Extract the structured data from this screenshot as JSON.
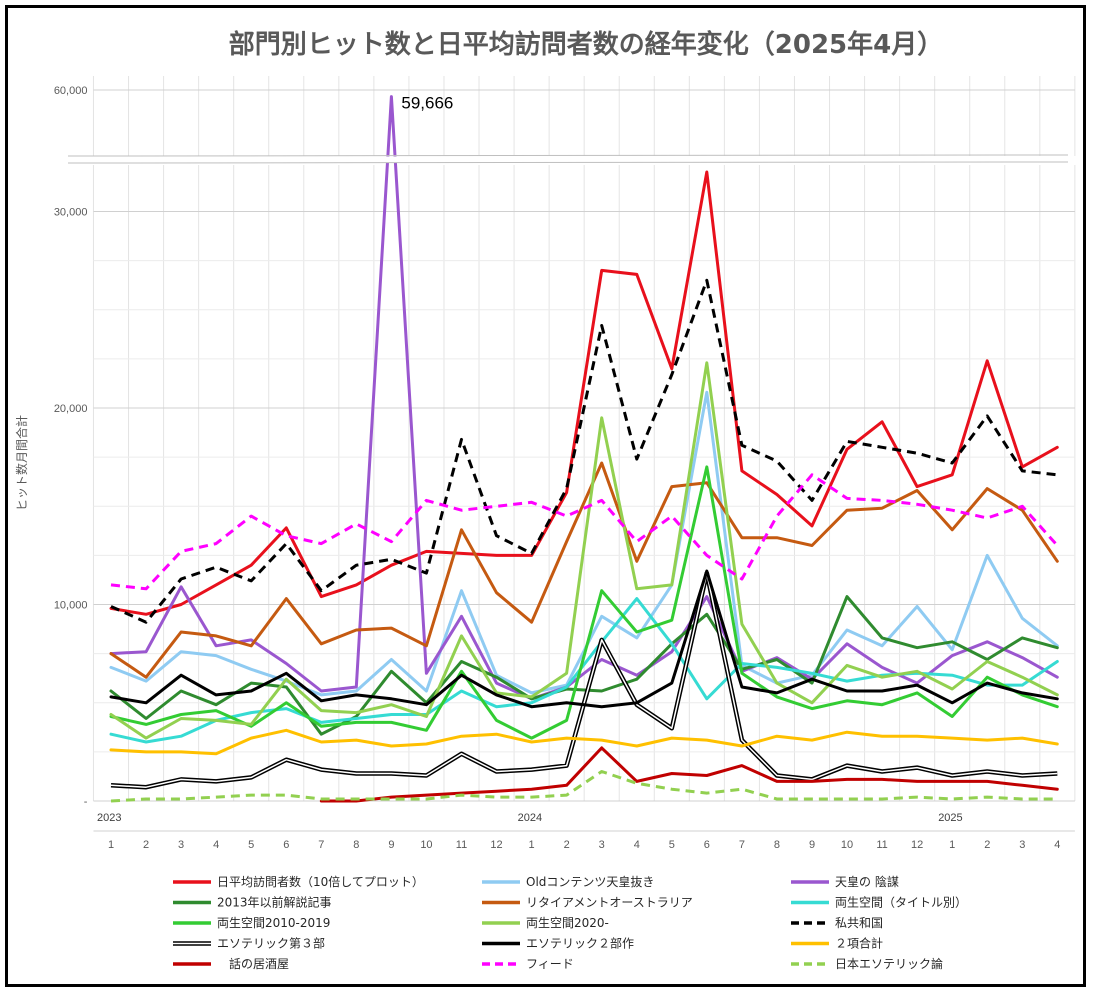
{
  "chart_data": {
    "type": "line",
    "title": "部門別ヒット数と日平均訪問者数の経年変化（2025年4月）",
    "ylabel": "ヒット数月間合計",
    "ylim": [
      0,
      60000
    ],
    "y_break": [
      32000,
      58000
    ],
    "y_ticks": [
      "-",
      "10,000",
      "20,000",
      "30,000",
      "60,000"
    ],
    "x_labels": [
      "1",
      "2",
      "3",
      "4",
      "5",
      "6",
      "7",
      "8",
      "9",
      "10",
      "11",
      "12",
      "1",
      "2",
      "3",
      "4",
      "5",
      "6",
      "7",
      "8",
      "9",
      "10",
      "11",
      "12",
      "1",
      "2",
      "3",
      "4"
    ],
    "years": [
      {
        "label": "2023",
        "index": 0
      },
      {
        "label": "2024",
        "index": 12
      },
      {
        "label": "2025",
        "index": 24
      }
    ],
    "annotation": {
      "text": "59,666",
      "series": "天皇の 陰謀",
      "index": 8
    },
    "legend_position": "bottom",
    "grid": true,
    "series": [
      {
        "name": "日平均訪問者数（10倍してプロット）",
        "color": "#e8101c",
        "width": 3,
        "style": "solid",
        "values": [
          9800,
          9500,
          10000,
          11000,
          12000,
          13900,
          10400,
          11000,
          12000,
          12700,
          12600,
          12500,
          12500,
          15700,
          27000,
          26800,
          22000,
          32300,
          16800,
          15600,
          14000,
          17900,
          19300,
          16000,
          16600,
          22400,
          17000,
          18000
        ]
      },
      {
        "name": "Oldコンテンツ天皇抜き",
        "color": "#8fcbf2",
        "width": 3,
        "style": "solid",
        "values": [
          6800,
          6100,
          7600,
          7400,
          6700,
          6100,
          5400,
          5600,
          7200,
          5600,
          10700,
          6400,
          5500,
          5900,
          9400,
          8300,
          11000,
          20800,
          6900,
          6000,
          6400,
          8700,
          7900,
          9900,
          7700,
          12500,
          9300,
          7900
        ]
      },
      {
        "name": "天皇の 陰謀",
        "color": "#9a57cf",
        "width": 3,
        "style": "solid",
        "values": [
          7500,
          7600,
          10900,
          7900,
          8200,
          7000,
          5600,
          5800,
          59666,
          6500,
          9400,
          6000,
          5200,
          5800,
          7200,
          6400,
          7600,
          10400,
          6600,
          7300,
          6200,
          8000,
          6800,
          6000,
          7400,
          8100,
          7300,
          6300
        ]
      },
      {
        "name": "2013年以前解説記事",
        "color": "#2f8b2f",
        "width": 3,
        "style": "solid",
        "values": [
          5600,
          4200,
          5600,
          4900,
          6000,
          5800,
          3400,
          4300,
          6600,
          5000,
          7100,
          6300,
          5200,
          5700,
          5600,
          6200,
          8000,
          9500,
          6700,
          7200,
          6000,
          10400,
          8300,
          7800,
          8100,
          7200,
          8300,
          7800
        ]
      },
      {
        "name": "リタイアメントオーストラリア",
        "color": "#c55a11",
        "width": 3,
        "style": "solid",
        "values": [
          7500,
          6300,
          8600,
          8400,
          7900,
          10300,
          8000,
          8700,
          8800,
          7900,
          13800,
          10600,
          9100,
          13200,
          17200,
          12200,
          16000,
          16200,
          13400,
          13400,
          13000,
          14800,
          14900,
          15800,
          13800,
          15900,
          14800,
          12200
        ]
      },
      {
        "name": "両生空間（タイトル別）",
        "color": "#36dbd3",
        "width": 3,
        "style": "solid",
        "values": [
          3400,
          3000,
          3300,
          4100,
          4500,
          4700,
          4000,
          4200,
          4400,
          4400,
          5600,
          4800,
          5000,
          5800,
          8100,
          10300,
          8000,
          5200,
          7000,
          6800,
          6500,
          6100,
          6400,
          6500,
          6400,
          5900,
          5900,
          7100
        ]
      },
      {
        "name": "両生空間2010-2019",
        "color": "#33cc33",
        "width": 3,
        "style": "solid",
        "values": [
          4300,
          3900,
          4400,
          4600,
          3800,
          5000,
          3800,
          4000,
          4000,
          3600,
          6600,
          4100,
          3200,
          4100,
          10700,
          8600,
          9200,
          17000,
          6500,
          5300,
          4700,
          5100,
          4900,
          5500,
          4300,
          6300,
          5400,
          4800
        ]
      },
      {
        "name": "両生空間2020-",
        "color": "#92d050",
        "width": 3,
        "style": "solid",
        "values": [
          4400,
          3200,
          4200,
          4100,
          3900,
          6200,
          4600,
          4500,
          4900,
          4300,
          8400,
          5500,
          5300,
          6500,
          19500,
          10800,
          11000,
          22300,
          9000,
          6000,
          5000,
          6900,
          6300,
          6600,
          5700,
          7100,
          6300,
          5400
        ]
      },
      {
        "name": "私共和国",
        "color": "#000000",
        "width": 3,
        "style": "dashed",
        "values": [
          9900,
          9100,
          11300,
          11900,
          11200,
          13100,
          10700,
          12000,
          12300,
          11600,
          18400,
          13500,
          12600,
          15900,
          24200,
          17400,
          21700,
          26500,
          18100,
          17300,
          15300,
          18300,
          18000,
          17700,
          17200,
          19600,
          16800,
          16600
        ]
      },
      {
        "name": "エソテリック第３部",
        "color": "#000000",
        "width": 3,
        "style": "double",
        "values": [
          800,
          700,
          1100,
          1000,
          1200,
          2100,
          1600,
          1400,
          1400,
          1300,
          2400,
          1500,
          1600,
          1800,
          8200,
          4900,
          3700,
          11600,
          3100,
          1300,
          1100,
          1800,
          1500,
          1700,
          1300,
          1500,
          1300,
          1400
        ]
      },
      {
        "name": "エソテリック２部作",
        "color": "#000000",
        "width": 3,
        "style": "solid",
        "values": [
          5300,
          5000,
          6400,
          5400,
          5600,
          6500,
          5100,
          5400,
          5200,
          4900,
          6400,
          5400,
          4800,
          5000,
          4800,
          5000,
          6000,
          11700,
          5800,
          5500,
          6200,
          5600,
          5600,
          5900,
          5000,
          6000,
          5500,
          5200
        ]
      },
      {
        "name": "２項合計",
        "color": "#ffc000",
        "width": 3,
        "style": "solid",
        "values": [
          2600,
          2500,
          2500,
          2400,
          3200,
          3600,
          3000,
          3100,
          2800,
          2900,
          3300,
          3400,
          3000,
          3200,
          3100,
          2800,
          3200,
          3100,
          2800,
          3300,
          3100,
          3500,
          3300,
          3300,
          3200,
          3100,
          3200,
          2900
        ]
      },
      {
        "name": "　話の居酒屋",
        "color": "#c00000",
        "width": 3,
        "style": "solid",
        "values": [
          null,
          null,
          null,
          null,
          null,
          null,
          0,
          0,
          200,
          300,
          400,
          500,
          600,
          800,
          2700,
          1000,
          1400,
          1300,
          1800,
          1000,
          1000,
          1100,
          1100,
          1000,
          1000,
          1000,
          800,
          600
        ]
      },
      {
        "name": "フィード",
        "color": "#ff00ff",
        "width": 3,
        "style": "dashed",
        "values": [
          11000,
          10800,
          12700,
          13100,
          14500,
          13500,
          13100,
          14100,
          13200,
          15300,
          14800,
          15000,
          15200,
          14500,
          15300,
          13200,
          14500,
          12500,
          11300,
          14500,
          16600,
          15400,
          15300,
          15100,
          14800,
          14400,
          15000,
          13000
        ]
      },
      {
        "name": "日本エソテリック論",
        "color": "#92d050",
        "width": 3,
        "style": "dashed",
        "values": [
          0,
          100,
          100,
          200,
          300,
          300,
          100,
          100,
          100,
          100,
          300,
          200,
          200,
          300,
          1500,
          900,
          600,
          400,
          600,
          100,
          100,
          100,
          100,
          200,
          100,
          200,
          100,
          100
        ]
      }
    ]
  }
}
